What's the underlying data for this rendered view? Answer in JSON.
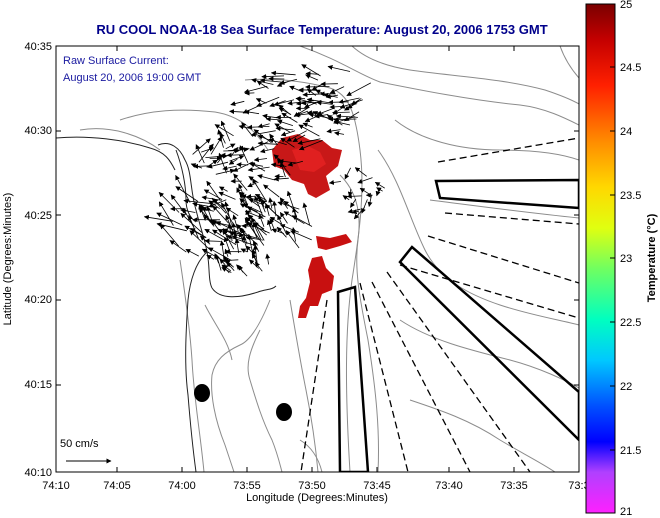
{
  "chart_data": {
    "type": "map",
    "title": "RU COOL  NOAA-18  Sea Surface Temperature:  August 20, 2006 1753 GMT",
    "annotation_lines": [
      "Raw Surface Current:",
      "August 20, 2006 19:00 GMT"
    ],
    "scale_label": "50 cm/s",
    "xlabel": "Longitude (Degrees:Minutes)",
    "ylabel": "Latitude (Degrees:Minutes)",
    "x_ticks": [
      "74:10",
      "74:05",
      "74:00",
      "73:55",
      "73:50",
      "73:45",
      "73:40",
      "73:35",
      "73:3"
    ],
    "y_ticks": [
      "40:35",
      "40:30",
      "40:25",
      "40:20",
      "40:15",
      "40:10"
    ],
    "colorbar": {
      "label": "Temperature (°C)",
      "range": [
        21,
        25
      ],
      "ticks": [
        "25",
        "24.5",
        "24",
        "23.5",
        "23",
        "22.5",
        "22",
        "21.5",
        "21"
      ]
    },
    "colors": {
      "title": "#00008b",
      "annotation": "#1a1aa0",
      "sst_patch": "#cc1010",
      "contours": "#8a8a8a",
      "coastline": "#222222",
      "vectors": "#000000"
    }
  }
}
